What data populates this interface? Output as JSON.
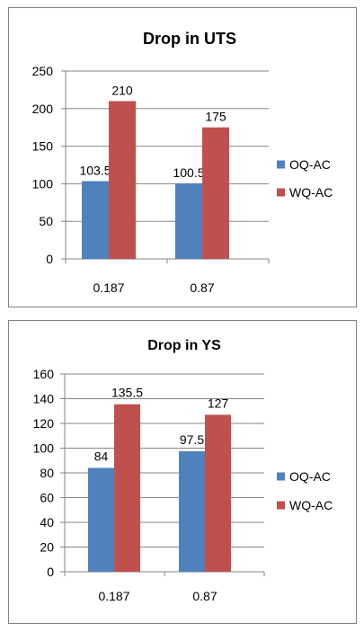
{
  "chart_data": [
    {
      "type": "bar",
      "title": "Drop in UTS",
      "categories": [
        "0.187",
        "0.87"
      ],
      "series": [
        {
          "name": "OQ-AC",
          "values": [
            103.5,
            100.5
          ],
          "color": "#4f81bd"
        },
        {
          "name": "WQ-AC",
          "values": [
            210,
            175
          ],
          "color": "#c0504d"
        }
      ],
      "data_labels": [
        [
          "103.5",
          "100.5"
        ],
        [
          "210",
          "175"
        ]
      ],
      "ylim": [
        0,
        250
      ],
      "yticks": [
        0,
        50,
        100,
        150,
        200,
        250
      ],
      "ytick_labels": [
        "0",
        "50",
        "100",
        "150",
        "200",
        "250"
      ],
      "grid": true,
      "legend_position": "right",
      "xlabel": "",
      "ylabel": ""
    },
    {
      "type": "bar",
      "title": "Drop in YS",
      "categories": [
        "0.187",
        "0.87"
      ],
      "series": [
        {
          "name": "OQ-AC",
          "values": [
            84,
            97.5
          ],
          "color": "#4f81bd"
        },
        {
          "name": "WQ-AC",
          "values": [
            135.5,
            127
          ],
          "color": "#c0504d"
        }
      ],
      "data_labels": [
        [
          "84",
          "97.5"
        ],
        [
          "135.5",
          "127"
        ]
      ],
      "ylim": [
        0,
        160
      ],
      "yticks": [
        0,
        20,
        40,
        60,
        80,
        100,
        120,
        140,
        160
      ],
      "ytick_labels": [
        "0",
        "20",
        "40",
        "60",
        "80",
        "100",
        "120",
        "140",
        "160"
      ],
      "grid": true,
      "legend_position": "right",
      "xlabel": "",
      "ylabel": ""
    }
  ]
}
